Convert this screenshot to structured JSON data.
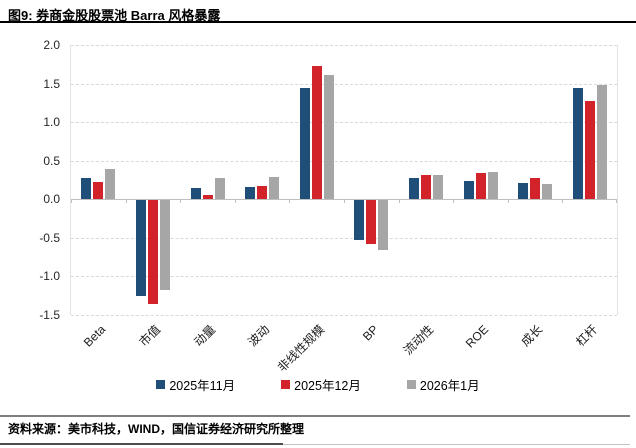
{
  "header": {
    "title": "图9: 券商金股股票池 Barra 风格暴露"
  },
  "footer": {
    "source": "资料来源：美市科技，WIND，国信证券经济研究所整理"
  },
  "colors": {
    "series_blue": "#1F4E79",
    "series_red": "#D2232A",
    "series_gray": "#A6A6A6",
    "gridline": "#D9D9D9",
    "zero_axis": "#BFBFBF"
  },
  "chart_data": {
    "type": "bar",
    "title": "图9: 券商金股股票池 Barra 风格暴露",
    "categories": [
      "Beta",
      "市值",
      "动量",
      "波动",
      "非线性规模",
      "BP",
      "流动性",
      "ROE",
      "成长",
      "杠杆"
    ],
    "series": [
      {
        "name": "2025年11月",
        "color": "#1F4E79",
        "values": [
          0.27,
          -1.24,
          0.14,
          0.16,
          1.44,
          -0.52,
          0.28,
          0.24,
          0.21,
          1.44
        ]
      },
      {
        "name": "2025年12月",
        "color": "#D2232A",
        "values": [
          0.22,
          -1.34,
          0.06,
          0.17,
          1.73,
          -0.57,
          0.31,
          0.34,
          0.27,
          1.27
        ]
      },
      {
        "name": "2026年1月",
        "color": "#A6A6A6",
        "values": [
          0.39,
          -1.16,
          0.28,
          0.29,
          1.61,
          -0.64,
          0.31,
          0.35,
          0.2,
          1.48
        ]
      }
    ],
    "xlabel": "",
    "ylabel": "",
    "ylim": [
      -1.5,
      2.0
    ],
    "ytick_step": 0.5,
    "yticks": [
      "2.0",
      "1.5",
      "1.0",
      "0.5",
      "0.0",
      "-0.5",
      "-1.0",
      "-1.5"
    ],
    "grid": "horizontal-dashed",
    "legend_position": "bottom"
  }
}
